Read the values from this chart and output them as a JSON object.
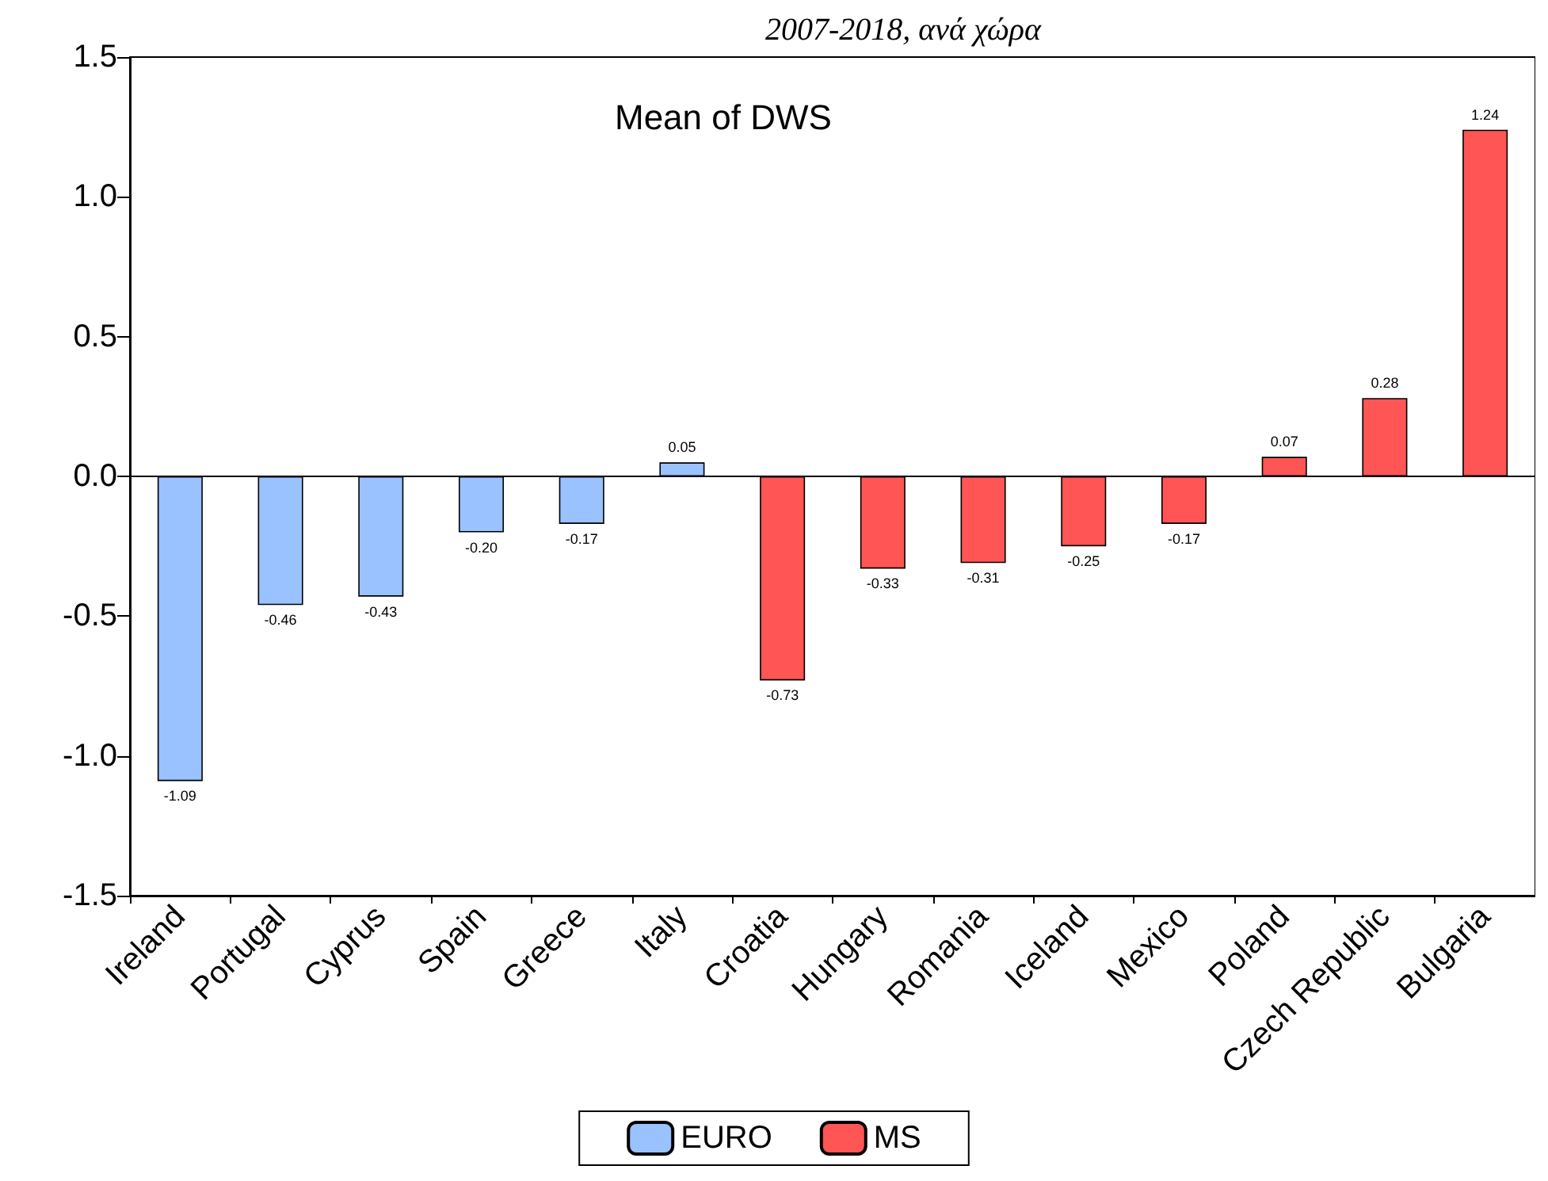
{
  "chart_data": {
    "type": "bar",
    "title": "Mean of DWS",
    "annotations": [
      "2007-2018, ανά χώρα"
    ],
    "categories": [
      "Ireland",
      "Portugal",
      "Cyprus",
      "Spain",
      "Greece",
      "Italy",
      "Croatia",
      "Hungary",
      "Romania",
      "Iceland",
      "Mexico",
      "Poland",
      "Czech Republic",
      "Bulgaria"
    ],
    "series": [
      {
        "name": "EURO",
        "color": "#99c2ff",
        "values": [
          -1.09,
          -0.46,
          -0.43,
          -0.2,
          -0.17,
          0.05,
          null,
          null,
          null,
          null,
          null,
          null,
          null,
          null
        ],
        "value_labels": [
          "-1.09",
          "-0.46",
          "-0.43",
          "-0.20",
          "-0.17",
          "0.05",
          null,
          null,
          null,
          null,
          null,
          null,
          null,
          null
        ]
      },
      {
        "name": "MS",
        "color": "#ff5555",
        "values": [
          null,
          null,
          null,
          null,
          null,
          null,
          -0.73,
          -0.33,
          -0.31,
          -0.25,
          -0.17,
          0.07,
          0.28,
          1.24
        ],
        "value_labels": [
          null,
          null,
          null,
          null,
          null,
          null,
          "-0.73",
          "-0.33",
          "-0.31",
          "-0.25",
          "-0.17",
          "0.07",
          "0.28",
          "1.24"
        ]
      }
    ],
    "ylim": [
      -1.5,
      1.5
    ],
    "yticks": [
      {
        "value": -1.5,
        "label": "-1.5"
      },
      {
        "value": -1,
        "label": "-1.0"
      },
      {
        "value": -0.5,
        "label": "-0.5"
      },
      {
        "value": 0,
        "label": "0.0"
      },
      {
        "value": 0.5,
        "label": "0.5"
      },
      {
        "value": 1,
        "label": "1.0"
      },
      {
        "value": 1.5,
        "label": "1.5"
      }
    ],
    "ref_lines": [
      {
        "axis": "y",
        "value": 0,
        "color": "#000000"
      }
    ],
    "grid": false,
    "legend": "bottom"
  }
}
